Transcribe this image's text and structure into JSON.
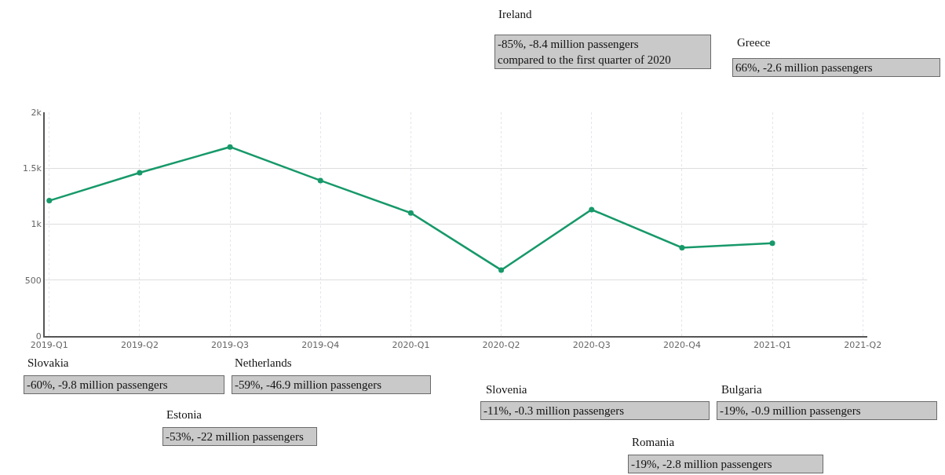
{
  "chart_data": {
    "type": "line",
    "categories": [
      "2019-Q1",
      "2019-Q2",
      "2019-Q3",
      "2019-Q4",
      "2020-Q1",
      "2020-Q2",
      "2020-Q3",
      "2020-Q4",
      "2021-Q1",
      "2021-Q2"
    ],
    "series": [
      {
        "color": "#17996a",
        "values": [
          1210,
          1460,
          1690,
          1390,
          1100,
          590,
          1130,
          790,
          830,
          null
        ]
      }
    ],
    "ylim": [
      0,
      2000
    ],
    "yticks": [
      0,
      500,
      {
        "value": 1000,
        "label": "1k"
      },
      {
        "value": 1500,
        "label": "1.5k"
      },
      {
        "value": 2000,
        "label": "2k"
      }
    ],
    "grid": true,
    "marker": "circle",
    "line_style": "solid",
    "annotations": [
      "Ireland",
      "-85%, -8.4 million passengers\ncompared to the first quarter of 2020",
      "Greece",
      "66%, -2.6 million passengers",
      "Slovakia",
      "-60%, -9.8 million passengers",
      "Netherlands",
      "-59%, -46.9 million passengers",
      "Estonia",
      "-53%, -22 million passengers",
      "Slovenia",
      "-11%, -0.3 million passengers",
      "Bulgaria",
      "-19%, -0.9 million passengers",
      "Romania",
      "-19%, -2.8 million passengers"
    ]
  }
}
